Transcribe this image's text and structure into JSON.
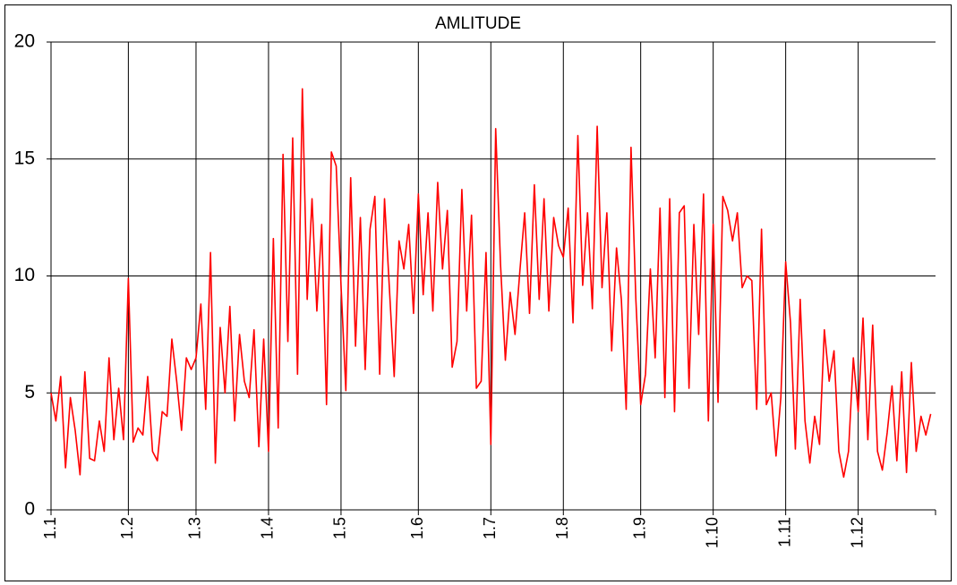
{
  "chart_data": {
    "type": "line",
    "title": "AMLITUDE",
    "color": "#ff0000",
    "grid": true,
    "ylim": [
      0,
      20
    ],
    "yticks": [
      0,
      5,
      10,
      15,
      20
    ],
    "categories": [
      "1.1",
      null,
      null,
      null,
      null,
      null,
      null,
      null,
      null,
      null,
      null,
      null,
      null,
      null,
      null,
      null,
      "1.2",
      null,
      null,
      null,
      null,
      null,
      null,
      null,
      null,
      null,
      null,
      null,
      null,
      null,
      "1.3",
      null,
      null,
      null,
      null,
      null,
      null,
      null,
      null,
      null,
      null,
      null,
      null,
      null,
      null,
      "1.4",
      null,
      null,
      null,
      null,
      null,
      null,
      null,
      null,
      null,
      null,
      null,
      null,
      null,
      null,
      "1.5",
      null,
      null,
      null,
      null,
      null,
      null,
      null,
      null,
      null,
      null,
      null,
      null,
      null,
      null,
      null,
      "1.6",
      null,
      null,
      null,
      null,
      null,
      null,
      null,
      null,
      null,
      null,
      null,
      null,
      null,
      null,
      "1.7",
      null,
      null,
      null,
      null,
      null,
      null,
      null,
      null,
      null,
      null,
      null,
      null,
      null,
      null,
      "1.8",
      null,
      null,
      null,
      null,
      null,
      null,
      null,
      null,
      null,
      null,
      null,
      null,
      null,
      null,
      null,
      "1.9",
      null,
      null,
      null,
      null,
      null,
      null,
      null,
      null,
      null,
      null,
      null,
      null,
      null,
      null,
      "1.10",
      null,
      null,
      null,
      null,
      null,
      null,
      null,
      null,
      null,
      null,
      null,
      null,
      null,
      null,
      "1.11",
      null,
      null,
      null,
      null,
      null,
      null,
      null,
      null,
      null,
      null,
      null,
      null,
      null,
      null,
      "1.12",
      null,
      null,
      null,
      null,
      null,
      null,
      null,
      null,
      null,
      null,
      null,
      null,
      null,
      null,
      null
    ],
    "values": [
      5,
      3.8,
      5.7,
      1.8,
      4.8,
      3.4,
      1.5,
      5.9,
      2.2,
      2.1,
      3.8,
      2.5,
      6.5,
      3,
      5.2,
      3,
      9.9,
      2.9,
      3.5,
      3.2,
      5.7,
      2.5,
      2.1,
      4.2,
      4,
      7.3,
      5.5,
      3.4,
      6.5,
      6,
      6.5,
      8.8,
      4.3,
      11,
      2,
      7.8,
      5,
      8.7,
      3.8,
      7.5,
      5.5,
      4.8,
      7.7,
      2.7,
      7.3,
      2.5,
      11.6,
      3.5,
      15.2,
      7.2,
      15.9,
      5.8,
      18,
      9,
      13.3,
      8.5,
      12.2,
      4.5,
      15.3,
      14.7,
      9.6,
      5.1,
      14.2,
      7,
      12.5,
      6,
      12,
      13.4,
      5.8,
      13.3,
      9.5,
      5.7,
      11.5,
      10.3,
      12.2,
      8.4,
      13.5,
      9.2,
      12.7,
      8.5,
      14,
      10.3,
      12.8,
      6.1,
      7.2,
      13.7,
      8.5,
      12.6,
      5.2,
      5.5,
      11,
      2.8,
      16.3,
      10.5,
      6.4,
      9.3,
      7.5,
      10.2,
      12.7,
      8.4,
      13.9,
      9,
      13.3,
      8.5,
      12.5,
      11.3,
      10.8,
      12.9,
      8,
      16,
      9.6,
      12.7,
      8.6,
      16.4,
      9.5,
      12.7,
      6.8,
      11.2,
      9,
      4.3,
      15.5,
      9,
      4.5,
      5.8,
      10.3,
      6.5,
      12.9,
      4.8,
      13.3,
      4.2,
      12.7,
      13,
      5.2,
      12.2,
      7.5,
      13.5,
      3.8,
      12.2,
      4.6,
      13.4,
      12.8,
      11.5,
      12.7,
      9.5,
      10,
      9.8,
      4.3,
      12,
      4.5,
      5,
      2.3,
      4.8,
      10.6,
      8,
      2.6,
      9,
      3.8,
      2,
      4,
      2.8,
      7.7,
      5.5,
      6.8,
      2.5,
      1.4,
      2.5,
      6.5,
      4.2,
      8.2,
      3,
      7.9,
      2.5,
      1.7,
      3.3,
      5.3,
      2.1,
      5.9,
      1.6,
      6.3,
      2.5,
      4,
      3.2,
      4.1
    ]
  }
}
